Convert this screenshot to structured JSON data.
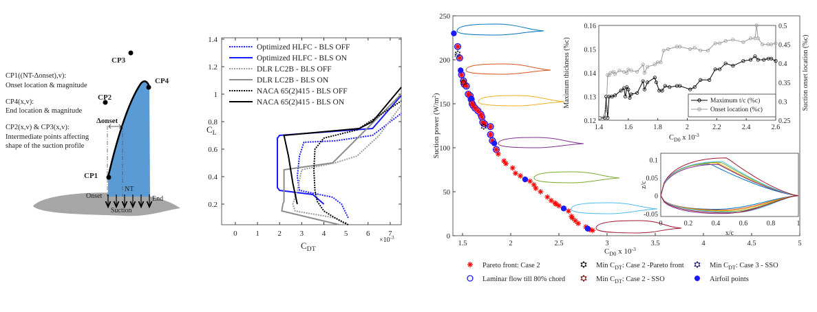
{
  "diagram": {
    "control_points": [
      "CP1",
      "CP2",
      "CP3",
      "CP4"
    ],
    "description_lines": [
      "CP1((NT-Δonset),v):",
      "Onset location & magnitude",
      "CP4(x,v):",
      "End location & magnitude",
      "CP2(x,v) & CP3(x,v):",
      "Intermediate points affecting",
      "shape of the suction profile"
    ],
    "delta_onset": "Δonset",
    "onset": "Onset",
    "nt": "NT",
    "end": "End",
    "suction": "Suction",
    "colors": {
      "suction_region": "#5b9bd5",
      "airfoil": "#a6a6a6"
    }
  },
  "chart_data": [
    {
      "type": "line",
      "xlabel": {
        "base": "C",
        "sub": "DT"
      },
      "x_multiplier": "×10",
      "x_multiplier_exp": "-3",
      "ylabel": {
        "base": "C",
        "sub": "L"
      },
      "xlim": [
        -0.62,
        7.5
      ],
      "ylim": [
        0.05,
        1.41
      ],
      "xticks": [
        0,
        1,
        2,
        3,
        4,
        5,
        6,
        7
      ],
      "yticks": [
        0.2,
        0.4,
        0.6,
        0.8,
        1,
        1.2,
        1.4
      ],
      "grid": false,
      "legend": "top-left",
      "series": [
        {
          "name": "Optimized HLFC - BLS OFF",
          "color": "#1a1aff",
          "style": "dotted",
          "points": [
            [
              5.1,
              0.1
            ],
            [
              4.8,
              0.2
            ],
            [
              4.4,
              0.25
            ],
            [
              3.5,
              0.28
            ],
            [
              2.9,
              0.3
            ],
            [
              2.8,
              0.4
            ],
            [
              2.9,
              0.55
            ],
            [
              3.1,
              0.65
            ],
            [
              4.5,
              0.66
            ],
            [
              6.2,
              0.7
            ],
            [
              7.5,
              0.86
            ]
          ]
        },
        {
          "name": "Optimized HLFC - BLS ON",
          "color": "#1a1aff",
          "style": "solid",
          "points": [
            [
              4.0,
              0.2
            ],
            [
              3.5,
              0.27
            ],
            [
              2.0,
              0.3
            ],
            [
              1.9,
              0.32
            ],
            [
              1.9,
              0.68
            ],
            [
              2.0,
              0.7
            ],
            [
              6.2,
              0.75
            ],
            [
              7.5,
              0.99
            ]
          ]
        },
        {
          "name": "DLR LC2B - BLS OFF",
          "color": "#999999",
          "style": "dotted",
          "points": [
            [
              5.0,
              0.05
            ],
            [
              4.5,
              0.1
            ],
            [
              2.7,
              0.15
            ],
            [
              2.6,
              0.2
            ],
            [
              2.7,
              0.25
            ],
            [
              2.8,
              0.3
            ],
            [
              3.0,
              0.45
            ],
            [
              4.5,
              0.5
            ],
            [
              5.5,
              0.55
            ],
            [
              6.5,
              0.7
            ],
            [
              7.5,
              0.92
            ]
          ]
        },
        {
          "name": "DLR LC2B - BLS ON",
          "color": "#8c8c8c",
          "style": "solid",
          "points": [
            [
              4.7,
              0.05
            ],
            [
              2.1,
              0.15
            ],
            [
              2.15,
              0.2
            ],
            [
              2.2,
              0.22
            ],
            [
              2.2,
              0.45
            ],
            [
              4.4,
              0.5
            ],
            [
              7.5,
              1.0
            ]
          ]
        },
        {
          "name": "NACA 65(2)415 - BLS OFF",
          "color": "#000000",
          "style": "dotted",
          "points": [
            [
              5.1,
              0.05
            ],
            [
              4.5,
              0.1
            ],
            [
              4.0,
              0.15
            ],
            [
              3.7,
              0.22
            ],
            [
              3.6,
              0.3
            ],
            [
              3.55,
              0.45
            ],
            [
              3.6,
              0.6
            ],
            [
              4.0,
              0.68
            ],
            [
              5.5,
              0.74
            ],
            [
              7.5,
              0.95
            ]
          ]
        },
        {
          "name": "NACA 65(2)415 - BLS ON",
          "color": "#000000",
          "style": "solid",
          "points": [
            [
              2.8,
              0.2
            ],
            [
              2.6,
              0.35
            ],
            [
              2.4,
              0.55
            ],
            [
              2.2,
              0.7
            ],
            [
              5.6,
              0.75
            ],
            [
              6.2,
              0.8
            ],
            [
              7.5,
              1.05
            ]
          ]
        }
      ]
    },
    {
      "type": "scatter",
      "xlabel": {
        "base": "C",
        "sub": "D0",
        "suffix": " x 10",
        "exp": "-3"
      },
      "ylabel": "Suction power (W/m",
      "ylabel_exp": "2",
      "ylabel_close": ")",
      "xlim": [
        1.4,
        5
      ],
      "ylim": [
        0,
        250
      ],
      "xticks": [
        "1.5",
        "2",
        "2.5",
        "3",
        "3.5",
        "4",
        "4.5",
        "5"
      ],
      "yticks": [
        "0",
        "50",
        "100",
        "150",
        "200",
        "250"
      ],
      "grid": false,
      "legend": "bottom",
      "legend_items": [
        {
          "label": "Pareto front: Case 2",
          "marker": "asterisk",
          "color": "#ff0000"
        },
        {
          "label": "Laminar flow till 80% chord",
          "marker": "open-circle",
          "color": "#1a1aff"
        },
        {
          "label": "Min C",
          "sub": "DT",
          "rest": ": Case 2 -Pareto front",
          "marker": "hexagram",
          "color": "#000000"
        },
        {
          "label": "Min C",
          "sub": "DT",
          "rest": ": Case 2 - SSO",
          "marker": "hexagram",
          "color": "#ff0000"
        },
        {
          "label": "Min C",
          "sub": "DT",
          "rest": ": Case 3 - SSO",
          "marker": "hexagram",
          "color": "#1a1aff"
        },
        {
          "label": "Airfoil points",
          "marker": "filled-circle",
          "color": "#1a1aff"
        }
      ],
      "pareto_front_case2": [
        [
          1.45,
          215
        ],
        [
          1.47,
          202
        ],
        [
          1.49,
          183
        ],
        [
          1.51,
          176
        ],
        [
          1.52,
          172
        ],
        [
          1.54,
          170
        ],
        [
          1.56,
          161
        ],
        [
          1.58,
          159
        ],
        [
          1.59,
          155
        ],
        [
          1.6,
          150
        ],
        [
          1.61,
          148
        ],
        [
          1.63,
          145
        ],
        [
          1.66,
          142
        ],
        [
          1.69,
          138
        ],
        [
          1.7,
          135
        ],
        [
          1.71,
          129
        ],
        [
          1.73,
          127
        ],
        [
          1.79,
          124
        ],
        [
          1.79,
          115
        ],
        [
          1.81,
          108
        ],
        [
          1.85,
          98
        ],
        [
          1.87,
          93
        ],
        [
          1.93,
          85
        ],
        [
          1.95,
          82
        ],
        [
          2.02,
          77
        ],
        [
          2.05,
          71
        ],
        [
          2.1,
          68
        ],
        [
          2.2,
          62
        ],
        [
          2.24,
          58
        ],
        [
          2.26,
          54
        ],
        [
          2.31,
          50
        ],
        [
          2.38,
          44
        ],
        [
          2.42,
          40
        ],
        [
          2.46,
          37
        ],
        [
          2.47,
          36
        ],
        [
          2.5,
          34
        ],
        [
          2.6,
          28
        ],
        [
          2.63,
          22
        ],
        [
          2.64,
          20
        ],
        [
          2.67,
          17
        ],
        [
          2.7,
          14
        ],
        [
          2.78,
          10
        ],
        [
          2.82,
          7
        ],
        [
          2.85,
          6
        ]
      ],
      "laminar_flow_80pct": [
        [
          1.45,
          215
        ],
        [
          1.47,
          202
        ],
        [
          1.49,
          183
        ],
        [
          1.51,
          176
        ],
        [
          1.52,
          172
        ],
        [
          1.54,
          170
        ],
        [
          1.56,
          161
        ],
        [
          1.58,
          159
        ],
        [
          1.59,
          155
        ],
        [
          1.6,
          150
        ],
        [
          1.61,
          148
        ],
        [
          1.63,
          145
        ],
        [
          1.66,
          142
        ],
        [
          1.69,
          138
        ],
        [
          1.7,
          135
        ],
        [
          1.71,
          129
        ],
        [
          1.73,
          127
        ],
        [
          1.79,
          124
        ],
        [
          1.79,
          115
        ],
        [
          1.81,
          108
        ],
        [
          1.85,
          98
        ]
      ],
      "airfoil_points": [
        [
          1.41,
          230
        ],
        [
          1.48,
          188
        ],
        [
          1.59,
          156
        ],
        [
          1.83,
          105
        ],
        [
          2.15,
          64
        ],
        [
          2.55,
          31
        ],
        [
          2.8,
          8
        ]
      ],
      "min_cdt_case2_pareto": [
        [
          1.45,
          207
        ],
        [
          1.72,
          124
        ]
      ],
      "min_cdt_case2_sso": [
        [
          1.51,
          174
        ]
      ],
      "min_cdt_case3_sso": [
        [
          1.44,
          205
        ]
      ],
      "airfoil_shape_colors": [
        "#0072bd",
        "#d95319",
        "#edb120",
        "#7e2f8e",
        "#77ac30",
        "#4dbeee",
        "#a2142f"
      ]
    },
    {
      "type": "line",
      "xlabel": {
        "base": "C",
        "sub": "D0",
        "suffix": " x 10",
        "exp": "-3"
      },
      "ylabel_left": "Maximum thickness (%c)",
      "ylabel_right": "Suction onset location (%c)",
      "xlim": [
        1.4,
        2.6
      ],
      "ylim_left": [
        0.12,
        0.16
      ],
      "ylim_right": [
        0.25,
        0.5
      ],
      "xticks": [
        "1.4",
        "1.6",
        "1.8",
        "2",
        "2.2",
        "2.4",
        "2.6"
      ],
      "yticks_left": [
        "0.12",
        "0.13",
        "0.14",
        "0.15",
        "0.16"
      ],
      "yticks_right": [
        "0.25",
        "0.3",
        "0.35",
        "0.4",
        "0.45",
        "0.5"
      ],
      "legend": "bottom-right",
      "series": [
        {
          "name": "Maximum t/c (%c)",
          "axis": "left",
          "color": "#000000",
          "points": [
            [
              1.41,
              0.121
            ],
            [
              1.44,
              0.121
            ],
            [
              1.45,
              0.13
            ],
            [
              1.46,
              0.121
            ],
            [
              1.47,
              0.13
            ],
            [
              1.49,
              0.13
            ],
            [
              1.51,
              0.1305
            ],
            [
              1.55,
              0.1325
            ],
            [
              1.57,
              0.1335
            ],
            [
              1.58,
              0.13
            ],
            [
              1.59,
              0.134
            ],
            [
              1.6,
              0.133
            ],
            [
              1.61,
              0.1295
            ],
            [
              1.62,
              0.131
            ],
            [
              1.66,
              0.1315
            ],
            [
              1.7,
              0.1365
            ],
            [
              1.71,
              0.133
            ],
            [
              1.73,
              0.136
            ],
            [
              1.78,
              0.138
            ],
            [
              1.79,
              0.136
            ],
            [
              1.81,
              0.1325
            ],
            [
              1.83,
              0.1325
            ],
            [
              1.85,
              0.1345
            ],
            [
              1.88,
              0.134
            ],
            [
              1.93,
              0.1345
            ],
            [
              1.95,
              0.1345
            ],
            [
              2.02,
              0.133
            ],
            [
              2.05,
              0.134
            ],
            [
              2.09,
              0.137
            ],
            [
              2.15,
              0.137
            ],
            [
              2.19,
              0.1415
            ],
            [
              2.22,
              0.1415
            ],
            [
              2.26,
              0.144
            ],
            [
              2.31,
              0.143
            ],
            [
              2.38,
              0.145
            ],
            [
              2.43,
              0.1455
            ],
            [
              2.46,
              0.147
            ],
            [
              2.48,
              0.1455
            ],
            [
              2.52,
              0.1455
            ],
            [
              2.55,
              0.146
            ],
            [
              2.57,
              0.146
            ],
            [
              2.6,
              0.145
            ]
          ]
        },
        {
          "name": "Onset location (%c)",
          "axis": "right",
          "color": "#999999",
          "points": [
            [
              1.41,
              0.256
            ],
            [
              1.44,
              0.2625
            ],
            [
              1.45,
              0.275
            ],
            [
              1.46,
              0.369
            ],
            [
              1.47,
              0.369
            ],
            [
              1.48,
              0.375
            ],
            [
              1.5,
              0.378
            ],
            [
              1.51,
              0.372
            ],
            [
              1.54,
              0.381
            ],
            [
              1.57,
              0.378
            ],
            [
              1.59,
              0.375
            ],
            [
              1.6,
              0.384
            ],
            [
              1.62,
              0.381
            ],
            [
              1.66,
              0.378
            ],
            [
              1.7,
              0.397
            ],
            [
              1.71,
              0.375
            ],
            [
              1.73,
              0.391
            ],
            [
              1.78,
              0.397
            ],
            [
              1.8,
              0.403
            ],
            [
              1.82,
              0.403
            ],
            [
              1.84,
              0.434
            ],
            [
              1.87,
              0.4375
            ],
            [
              1.93,
              0.444
            ],
            [
              1.95,
              0.444
            ],
            [
              2.02,
              0.4375
            ],
            [
              2.05,
              0.441
            ],
            [
              2.09,
              0.434
            ],
            [
              2.14,
              0.434
            ],
            [
              2.19,
              0.453
            ],
            [
              2.22,
              0.453
            ],
            [
              2.26,
              0.459
            ],
            [
              2.31,
              0.4625
            ],
            [
              2.38,
              0.456
            ],
            [
              2.43,
              0.466
            ],
            [
              2.46,
              0.466
            ],
            [
              2.47,
              0.5
            ],
            [
              2.48,
              0.466
            ],
            [
              2.51,
              0.45
            ],
            [
              2.55,
              0.45
            ],
            [
              2.57,
              0.45
            ],
            [
              2.6,
              0.453
            ]
          ]
        }
      ]
    },
    {
      "type": "line",
      "xlabel": "x/c",
      "ylabel": "z/c",
      "xlim": [
        0,
        1
      ],
      "ylim": [
        -0.058,
        0.118
      ],
      "xticks": [
        "0",
        "0.2",
        "0.4",
        "0.6",
        "0.8",
        "1"
      ],
      "yticks": [
        "-0.05",
        "0",
        "0.05",
        "0.1"
      ],
      "series": [
        {
          "color": "#0072bd",
          "upper_max": 0.088,
          "upper_at": 0.36,
          "lower_min": -0.038,
          "lower_at": 0.4
        },
        {
          "color": "#d95319",
          "upper_max": 0.092,
          "upper_at": 0.4,
          "lower_min": -0.04,
          "lower_at": 0.45
        },
        {
          "color": "#edb120",
          "upper_max": 0.091,
          "upper_at": 0.42,
          "lower_min": -0.042,
          "lower_at": 0.47
        },
        {
          "color": "#7e2f8e",
          "upper_max": 0.087,
          "upper_at": 0.42,
          "lower_min": -0.05,
          "lower_at": 0.45
        },
        {
          "color": "#77ac30",
          "upper_max": 0.093,
          "upper_at": 0.44,
          "lower_min": -0.044,
          "lower_at": 0.5
        },
        {
          "color": "#4dbeee",
          "upper_max": 0.095,
          "upper_at": 0.45,
          "lower_min": -0.046,
          "lower_at": 0.55
        },
        {
          "color": "#a2142f",
          "upper_max": 0.105,
          "upper_at": 0.48,
          "lower_min": -0.048,
          "lower_at": 0.5
        }
      ]
    }
  ]
}
